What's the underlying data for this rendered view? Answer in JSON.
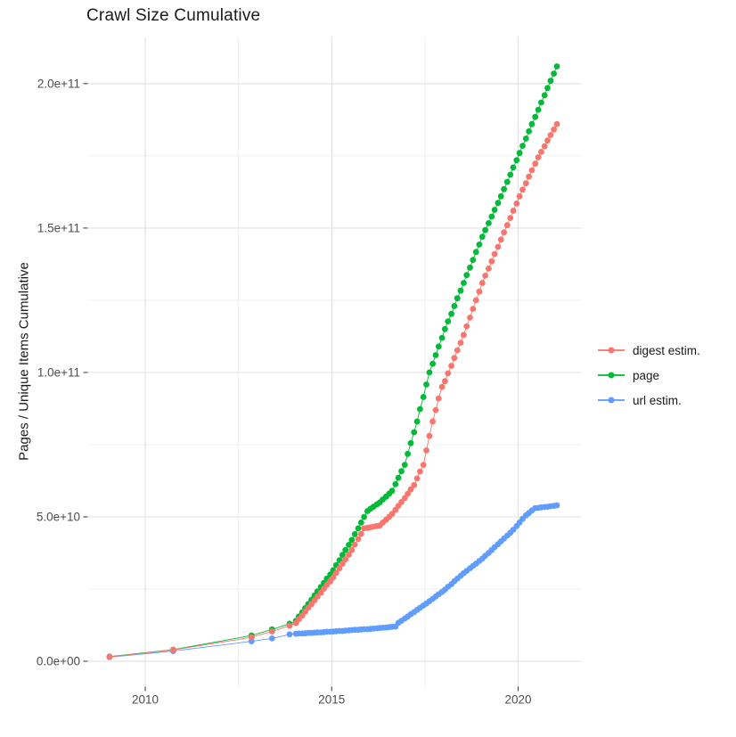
{
  "title": "Crawl Size Cumulative",
  "chart_data": {
    "type": "scatter",
    "title": "Crawl Size Cumulative",
    "xlabel": "",
    "ylabel": "Pages / Unique Items Cumulative",
    "note": "point values stored as [year, cumulative_count_in_billions]; 1 unit = 1e9 items",
    "grid": true,
    "legend_position": "right",
    "x_range": [
      2008.47,
      2021.7
    ],
    "y_range_billions": [
      -8.8,
      216.2
    ],
    "x_ticks": [
      {
        "value": 2010,
        "label": "2010"
      },
      {
        "value": 2015,
        "label": "2015"
      },
      {
        "value": 2020,
        "label": "2020"
      }
    ],
    "y_ticks": [
      {
        "value": 0,
        "label": "0.0e+00"
      },
      {
        "value": 50,
        "label": "5.0e+10"
      },
      {
        "value": 100,
        "label": "1.0e+11"
      },
      {
        "value": 150,
        "label": "1.5e+11"
      },
      {
        "value": 200,
        "label": "2.0e+11"
      }
    ],
    "x_minor_ticks": [
      2012.5,
      2017.5
    ],
    "y_minor_ticks": [
      25,
      75,
      125,
      175
    ],
    "series": [
      {
        "name": "digest estim.",
        "color": "#F8766D",
        "points": [
          [
            2009.04,
            1.5
          ],
          [
            2010.75,
            3.9
          ],
          [
            2012.85,
            8.3
          ],
          [
            2013.4,
            10.3
          ],
          [
            2013.87,
            12.3
          ],
          [
            2014.04,
            13.2
          ],
          [
            2014.12,
            14.5
          ],
          [
            2014.21,
            15.8
          ],
          [
            2014.29,
            17.2
          ],
          [
            2014.37,
            18.5
          ],
          [
            2014.46,
            19.8
          ],
          [
            2014.54,
            21.1
          ],
          [
            2014.62,
            22.4
          ],
          [
            2014.71,
            23.7
          ],
          [
            2014.79,
            25.1
          ],
          [
            2014.87,
            26.4
          ],
          [
            2014.96,
            27.7
          ],
          [
            2015.04,
            29
          ],
          [
            2015.12,
            30.6
          ],
          [
            2015.21,
            32.2
          ],
          [
            2015.29,
            33.8
          ],
          [
            2015.37,
            35.3
          ],
          [
            2015.46,
            36.9
          ],
          [
            2015.54,
            38.5
          ],
          [
            2015.62,
            40.4
          ],
          [
            2015.71,
            42.3
          ],
          [
            2015.79,
            44.1
          ],
          [
            2015.87,
            46
          ],
          [
            2015.96,
            46.2
          ],
          [
            2016.04,
            46.4
          ],
          [
            2016.12,
            46.6
          ],
          [
            2016.21,
            46.8
          ],
          [
            2016.29,
            47
          ],
          [
            2016.37,
            48
          ],
          [
            2016.46,
            49
          ],
          [
            2016.54,
            50
          ],
          [
            2016.62,
            51
          ],
          [
            2016.71,
            52.4
          ],
          [
            2016.79,
            53.8
          ],
          [
            2016.87,
            55.1
          ],
          [
            2016.96,
            56.5
          ],
          [
            2017.04,
            58
          ],
          [
            2017.12,
            59.5
          ],
          [
            2017.21,
            61
          ],
          [
            2017.29,
            63.3
          ],
          [
            2017.37,
            65.7
          ],
          [
            2017.46,
            68
          ],
          [
            2017.54,
            73
          ],
          [
            2017.62,
            78
          ],
          [
            2017.71,
            83
          ],
          [
            2017.79,
            87
          ],
          [
            2017.87,
            91
          ],
          [
            2017.96,
            95
          ],
          [
            2018.04,
            97
          ],
          [
            2018.12,
            99.7
          ],
          [
            2018.21,
            102.3
          ],
          [
            2018.29,
            105
          ],
          [
            2018.37,
            107.7
          ],
          [
            2018.46,
            110.3
          ],
          [
            2018.54,
            113
          ],
          [
            2018.62,
            116
          ],
          [
            2018.71,
            119
          ],
          [
            2018.79,
            122
          ],
          [
            2018.87,
            125
          ],
          [
            2018.96,
            128
          ],
          [
            2019.04,
            131
          ],
          [
            2019.12,
            133.5
          ],
          [
            2019.21,
            136
          ],
          [
            2019.29,
            138.5
          ],
          [
            2019.37,
            141
          ],
          [
            2019.46,
            143.5
          ],
          [
            2019.54,
            146
          ],
          [
            2019.62,
            148.5
          ],
          [
            2019.71,
            151
          ],
          [
            2019.79,
            153.5
          ],
          [
            2019.87,
            156
          ],
          [
            2019.96,
            158.5
          ],
          [
            2020.04,
            161
          ],
          [
            2020.12,
            163.3
          ],
          [
            2020.21,
            165.5
          ],
          [
            2020.29,
            167.8
          ],
          [
            2020.37,
            170
          ],
          [
            2020.46,
            172.3
          ],
          [
            2020.54,
            174.5
          ],
          [
            2020.62,
            176.4
          ],
          [
            2020.71,
            178.3
          ],
          [
            2020.79,
            180.3
          ],
          [
            2020.87,
            182.2
          ],
          [
            2020.96,
            184.1
          ],
          [
            2021.04,
            186
          ]
        ]
      },
      {
        "name": "page",
        "color": "#00BA38",
        "points": [
          [
            2009.04,
            1.6
          ],
          [
            2010.75,
            4
          ],
          [
            2012.85,
            8.9
          ],
          [
            2013.4,
            11
          ],
          [
            2013.87,
            13
          ],
          [
            2014.04,
            14
          ],
          [
            2014.12,
            15.5
          ],
          [
            2014.21,
            16.9
          ],
          [
            2014.29,
            18.4
          ],
          [
            2014.37,
            19.8
          ],
          [
            2014.46,
            21.3
          ],
          [
            2014.54,
            22.8
          ],
          [
            2014.62,
            24.2
          ],
          [
            2014.71,
            25.7
          ],
          [
            2014.79,
            27.1
          ],
          [
            2014.87,
            28.6
          ],
          [
            2014.96,
            30
          ],
          [
            2015.04,
            31.5
          ],
          [
            2015.12,
            33.3
          ],
          [
            2015.21,
            35
          ],
          [
            2015.29,
            36.8
          ],
          [
            2015.37,
            38.5
          ],
          [
            2015.46,
            40.3
          ],
          [
            2015.54,
            42
          ],
          [
            2015.62,
            44
          ],
          [
            2015.71,
            46
          ],
          [
            2015.79,
            48
          ],
          [
            2015.87,
            50
          ],
          [
            2015.96,
            52
          ],
          [
            2016.04,
            52.8
          ],
          [
            2016.12,
            53.5
          ],
          [
            2016.21,
            54.3
          ],
          [
            2016.29,
            55
          ],
          [
            2016.37,
            56
          ],
          [
            2016.46,
            57
          ],
          [
            2016.54,
            58
          ],
          [
            2016.62,
            59
          ],
          [
            2016.71,
            61.3
          ],
          [
            2016.79,
            63.5
          ],
          [
            2016.87,
            65.8
          ],
          [
            2016.96,
            68
          ],
          [
            2017.04,
            71.8
          ],
          [
            2017.12,
            75.5
          ],
          [
            2017.21,
            79.3
          ],
          [
            2017.29,
            83
          ],
          [
            2017.37,
            87.3
          ],
          [
            2017.46,
            91.5
          ],
          [
            2017.54,
            95.8
          ],
          [
            2017.62,
            100
          ],
          [
            2017.71,
            103
          ],
          [
            2017.79,
            106
          ],
          [
            2017.87,
            109
          ],
          [
            2017.96,
            112
          ],
          [
            2018.04,
            115
          ],
          [
            2018.12,
            117.7
          ],
          [
            2018.21,
            120.3
          ],
          [
            2018.29,
            123
          ],
          [
            2018.37,
            125.7
          ],
          [
            2018.46,
            128.3
          ],
          [
            2018.54,
            131
          ],
          [
            2018.62,
            133.7
          ],
          [
            2018.71,
            136.3
          ],
          [
            2018.79,
            139
          ],
          [
            2018.87,
            141.7
          ],
          [
            2018.96,
            144.3
          ],
          [
            2019.04,
            147
          ],
          [
            2019.12,
            149.3
          ],
          [
            2019.21,
            151.7
          ],
          [
            2019.29,
            154
          ],
          [
            2019.37,
            156.3
          ],
          [
            2019.46,
            158.7
          ],
          [
            2019.54,
            161
          ],
          [
            2019.62,
            163.5
          ],
          [
            2019.71,
            166
          ],
          [
            2019.79,
            168.5
          ],
          [
            2019.87,
            171
          ],
          [
            2019.96,
            173.5
          ],
          [
            2020.04,
            176
          ],
          [
            2020.12,
            178.5
          ],
          [
            2020.21,
            181
          ],
          [
            2020.29,
            183.5
          ],
          [
            2020.37,
            186
          ],
          [
            2020.46,
            188.5
          ],
          [
            2020.54,
            191
          ],
          [
            2020.62,
            193.5
          ],
          [
            2020.71,
            196
          ],
          [
            2020.79,
            198.5
          ],
          [
            2020.87,
            201
          ],
          [
            2020.96,
            203.5
          ],
          [
            2021.04,
            206
          ]
        ]
      },
      {
        "name": "url estim.",
        "color": "#619CFF",
        "points": [
          [
            2009.04,
            1.4
          ],
          [
            2010.75,
            3.5
          ],
          [
            2012.85,
            6.9
          ],
          [
            2013.4,
            7.9
          ],
          [
            2013.87,
            9.3
          ],
          [
            2014.04,
            9.5
          ],
          [
            2014.12,
            9.6
          ],
          [
            2014.21,
            9.6
          ],
          [
            2014.29,
            9.7
          ],
          [
            2014.37,
            9.8
          ],
          [
            2014.46,
            9.8
          ],
          [
            2014.54,
            9.9
          ],
          [
            2014.62,
            10
          ],
          [
            2014.71,
            10
          ],
          [
            2014.79,
            10.1
          ],
          [
            2014.87,
            10.2
          ],
          [
            2014.96,
            10.2
          ],
          [
            2015.04,
            10.3
          ],
          [
            2015.12,
            10.4
          ],
          [
            2015.21,
            10.5
          ],
          [
            2015.29,
            10.5
          ],
          [
            2015.37,
            10.6
          ],
          [
            2015.46,
            10.7
          ],
          [
            2015.54,
            10.8
          ],
          [
            2015.62,
            10.9
          ],
          [
            2015.71,
            10.9
          ],
          [
            2015.79,
            11
          ],
          [
            2015.87,
            11.1
          ],
          [
            2015.96,
            11.1
          ],
          [
            2016.04,
            11.2
          ],
          [
            2016.12,
            11.3
          ],
          [
            2016.21,
            11.4
          ],
          [
            2016.29,
            11.5
          ],
          [
            2016.37,
            11.6
          ],
          [
            2016.46,
            11.7
          ],
          [
            2016.54,
            11.8
          ],
          [
            2016.62,
            11.9
          ],
          [
            2016.71,
            12
          ],
          [
            2016.79,
            13.3
          ],
          [
            2016.87,
            14
          ],
          [
            2016.96,
            14.8
          ],
          [
            2017.04,
            15.5
          ],
          [
            2017.12,
            16.3
          ],
          [
            2017.21,
            17
          ],
          [
            2017.29,
            17.8
          ],
          [
            2017.37,
            18.5
          ],
          [
            2017.46,
            19.3
          ],
          [
            2017.54,
            20
          ],
          [
            2017.62,
            20.8
          ],
          [
            2017.71,
            21.6
          ],
          [
            2017.79,
            22.4
          ],
          [
            2017.87,
            23.2
          ],
          [
            2017.96,
            24
          ],
          [
            2018.04,
            24.8
          ],
          [
            2018.12,
            25.8
          ],
          [
            2018.21,
            26.7
          ],
          [
            2018.29,
            27.7
          ],
          [
            2018.37,
            28.6
          ],
          [
            2018.46,
            29.6
          ],
          [
            2018.54,
            30.5
          ],
          [
            2018.62,
            31.3
          ],
          [
            2018.71,
            32.2
          ],
          [
            2018.79,
            33
          ],
          [
            2018.87,
            33.8
          ],
          [
            2018.96,
            34.7
          ],
          [
            2019.04,
            35.5
          ],
          [
            2019.12,
            36.5
          ],
          [
            2019.21,
            37.5
          ],
          [
            2019.29,
            38.5
          ],
          [
            2019.37,
            39.5
          ],
          [
            2019.46,
            40.5
          ],
          [
            2019.54,
            41.5
          ],
          [
            2019.62,
            42.5
          ],
          [
            2019.71,
            43.5
          ],
          [
            2019.79,
            44.5
          ],
          [
            2019.87,
            45.5
          ],
          [
            2019.96,
            46.8
          ],
          [
            2020.04,
            48
          ],
          [
            2020.12,
            49.3
          ],
          [
            2020.21,
            50.5
          ],
          [
            2020.29,
            51.3
          ],
          [
            2020.37,
            52.2
          ],
          [
            2020.46,
            53
          ],
          [
            2020.54,
            53.1
          ],
          [
            2020.62,
            53.3
          ],
          [
            2020.71,
            53.4
          ],
          [
            2020.79,
            53.5
          ],
          [
            2020.87,
            53.7
          ],
          [
            2020.96,
            53.8
          ],
          [
            2021.04,
            54
          ]
        ]
      }
    ]
  },
  "legend": {
    "items": [
      {
        "label": "digest estim."
      },
      {
        "label": "page"
      },
      {
        "label": "url estim."
      }
    ]
  },
  "colors": {
    "grid_major": "#e3e3e3",
    "grid_minor": "#f1f1f1",
    "axis_text": "#4d4d4d",
    "tick_mark": "#333333",
    "title_text": "#1a1a1a"
  }
}
